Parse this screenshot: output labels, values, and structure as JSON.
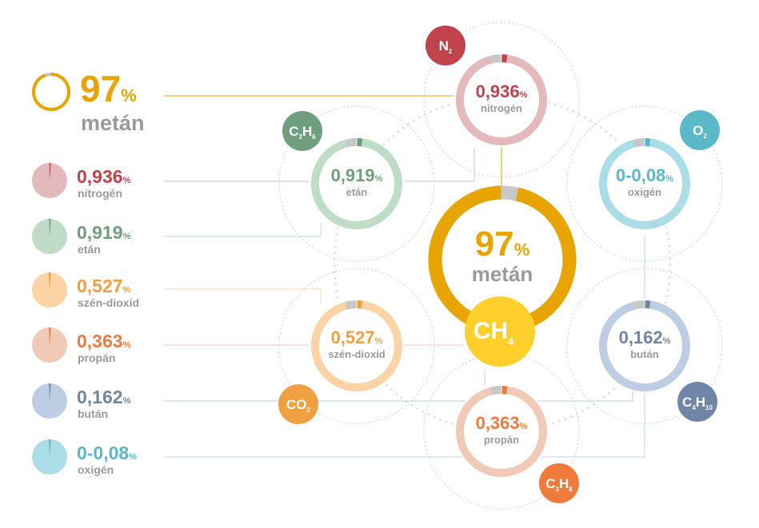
{
  "chart_data": {
    "type": "pie",
    "title": "",
    "unit": "%",
    "main": {
      "key": "metan",
      "value": "97",
      "pct": "%",
      "label": "metán",
      "formula": "CH",
      "formula_sub": "4",
      "color": "#E8A400"
    },
    "components": [
      {
        "key": "nitrogen",
        "value": "0,936",
        "pct": "%",
        "label": "nitrogén",
        "formula_parts": [
          "N",
          "2"
        ],
        "color": "#C0434B",
        "light": "#E3B9BC"
      },
      {
        "key": "etan",
        "value": "0,919",
        "pct": "%",
        "label": "etán",
        "formula_parts": [
          "C",
          "2",
          "H",
          "6"
        ],
        "color": "#6E9E7D",
        "light": "#BFDDC6"
      },
      {
        "key": "szendioxid",
        "value": "0,527",
        "pct": "%",
        "label": "szén-dioxid",
        "formula_parts": [
          "CO",
          "2"
        ],
        "color": "#F0A040",
        "light": "#FCD3A5"
      },
      {
        "key": "propan",
        "value": "0,363",
        "pct": "%",
        "label": "propán",
        "formula_parts": [
          "C",
          "3",
          "H",
          "8"
        ],
        "color": "#EF7A3C",
        "light": "#F0C9B7"
      },
      {
        "key": "butan",
        "value": "0,162",
        "pct": "%",
        "label": "bután",
        "formula_parts": [
          "C",
          "4",
          "H",
          "10"
        ],
        "color": "#6F86A6",
        "light": "#BDCDE3"
      },
      {
        "key": "oxigen",
        "value": "0-0,08",
        "pct": "%",
        "label": "oxigén",
        "formula_parts": [
          "O",
          "2"
        ],
        "color": "#5BB8C8",
        "light": "#AADDE6"
      }
    ]
  }
}
